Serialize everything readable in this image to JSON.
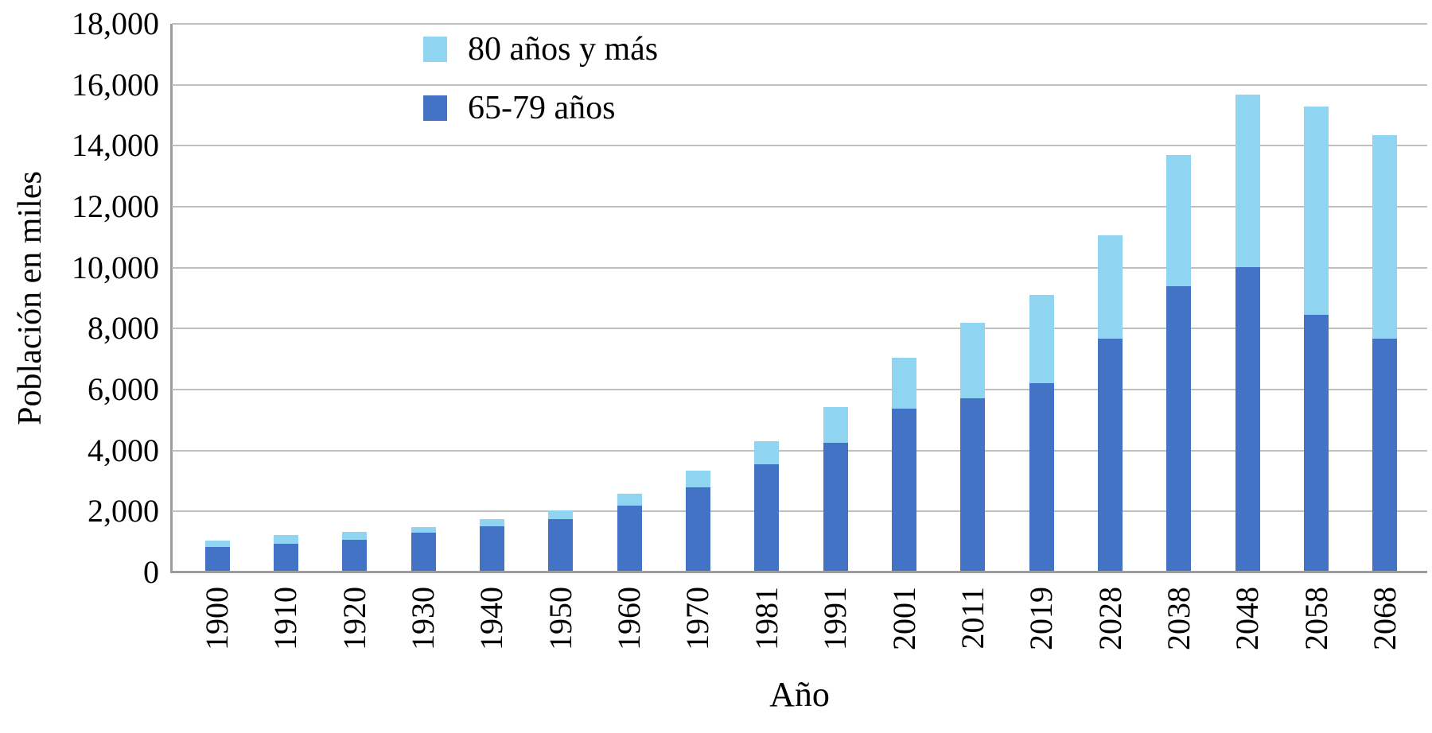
{
  "figure": {
    "y_axis_title": "Población en miles",
    "x_axis_title": "Año",
    "y_tick_labels": [
      "0",
      "2,000",
      "4,000",
      "6,000",
      "8,000",
      "10,000",
      "12,000",
      "14,000",
      "16,000",
      "18,000"
    ]
  },
  "legend": {
    "items": [
      {
        "label": "80 años y más",
        "color": "#8FD5F2"
      },
      {
        "label": "65-79 años",
        "color": "#4273C4"
      }
    ]
  },
  "colors": {
    "series_65_79": "#4273C4",
    "series_80_plus": "#8FD5F2",
    "gridline": "#BFBFBF",
    "axis": "#9C9C9C",
    "text": "#000000"
  },
  "chart_data": {
    "type": "bar",
    "stacked": true,
    "title": "",
    "xlabel": "Año",
    "ylabel": "Población en miles",
    "ylim": [
      0,
      18000
    ],
    "ytick_step": 2000,
    "grid": true,
    "legend_position": "top-left-inside",
    "categories": [
      "1900",
      "1910",
      "1920",
      "1930",
      "1940",
      "1950",
      "1960",
      "1970",
      "1981",
      "1991",
      "2001",
      "2011",
      "2019",
      "2028",
      "2038",
      "2048",
      "2058",
      "2068"
    ],
    "series": [
      {
        "name": "65-79 años",
        "color": "#4273C4",
        "values": [
          790,
          900,
          1030,
          1240,
          1450,
          1690,
          2150,
          2740,
          3500,
          4210,
          5320,
          5650,
          6150,
          7630,
          9330,
          9970,
          8410,
          7620
        ]
      },
      {
        "name": "80 años y más",
        "color": "#8FD5F2",
        "values": [
          210,
          280,
          240,
          200,
          250,
          300,
          390,
          550,
          760,
          1170,
          1670,
          2480,
          2900,
          3380,
          4320,
          5650,
          6830,
          6670
        ]
      }
    ],
    "stacked_totals": [
      1000,
      1180,
      1270,
      1440,
      1700,
      1990,
      2540,
      3290,
      4260,
      5380,
      6990,
      8130,
      9050,
      11010,
      13650,
      15620,
      15240,
      14290
    ]
  }
}
